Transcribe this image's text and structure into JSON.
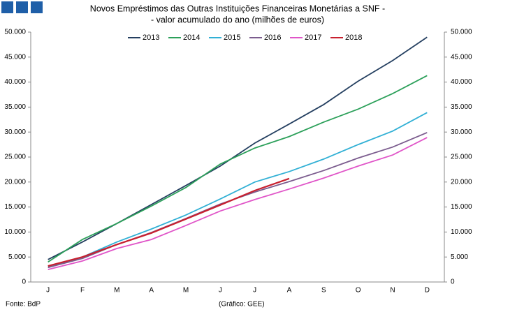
{
  "chart_data": {
    "type": "line",
    "title": "Novos Empréstimos das Outras Instituições Financeiras Monetárias a SNF -",
    "subtitle": "- valor acumulado do ano (milhões de euros)",
    "source": "Fonte: BdP",
    "credit": "(Gráfico: GEE)",
    "categories": [
      "J",
      "F",
      "M",
      "A",
      "M",
      "J",
      "J",
      "A",
      "S",
      "O",
      "N",
      "D"
    ],
    "series": [
      {
        "name": "2013",
        "color": "#243f60",
        "values": [
          4500,
          8000,
          11700,
          15500,
          19300,
          23200,
          27800,
          31600,
          35500,
          40200,
          44300,
          49000
        ]
      },
      {
        "name": "2014",
        "color": "#2ca05a",
        "values": [
          4000,
          8500,
          11700,
          15200,
          18900,
          23600,
          26800,
          29100,
          32000,
          34600,
          37700,
          41300
        ]
      },
      {
        "name": "2015",
        "color": "#31b0d5",
        "values": [
          2900,
          5000,
          8000,
          10600,
          13400,
          16600,
          20000,
          22100,
          24600,
          27500,
          30200,
          33900
        ]
      },
      {
        "name": "2016",
        "color": "#7b5c8e",
        "values": [
          2900,
          4700,
          7500,
          9900,
          12700,
          15600,
          18000,
          20100,
          22300,
          24800,
          27000,
          29900
        ]
      },
      {
        "name": "2017",
        "color": "#e055c8",
        "values": [
          2500,
          4200,
          6700,
          8500,
          11300,
          14200,
          16500,
          18600,
          20800,
          23200,
          25400,
          28900
        ]
      },
      {
        "name": "2018",
        "color": "#c8202f",
        "values": [
          3200,
          5000,
          7500,
          9800,
          12600,
          15400,
          18300,
          20700,
          null,
          null,
          null,
          null
        ]
      }
    ],
    "ylim": [
      0,
      50000
    ],
    "yticks": [
      0,
      {
        "value": 5000,
        "label": "5.000"
      },
      {
        "value": 10000,
        "label": "10.000"
      },
      {
        "value": 15000,
        "label": "15.000"
      },
      {
        "value": 20000,
        "label": "20.000"
      },
      {
        "value": 25000,
        "label": "25.000"
      },
      {
        "value": 30000,
        "label": "30.000"
      },
      {
        "value": 35000,
        "label": "35.000"
      },
      {
        "value": 40000,
        "label": "40.000"
      },
      {
        "value": 45000,
        "label": "45.000"
      },
      {
        "value": 50000,
        "label": "50.000"
      }
    ],
    "y2lim": [
      0,
      50000
    ],
    "y2ticks": [
      0,
      {
        "value": 5000,
        "label": "5.000"
      },
      {
        "value": 10000,
        "label": "10.000"
      },
      {
        "value": 15000,
        "label": "15.000"
      },
      {
        "value": 20000,
        "label": "20.000"
      },
      {
        "value": 25000,
        "label": "25.000"
      },
      {
        "value": 30000,
        "label": "30.000"
      },
      {
        "value": 35000,
        "label": "35.000"
      },
      {
        "value": 40000,
        "label": "40.000"
      },
      {
        "value": 45000,
        "label": "45.000"
      },
      {
        "value": 50000,
        "label": "50.000"
      }
    ],
    "legend": "top",
    "grid": false
  }
}
